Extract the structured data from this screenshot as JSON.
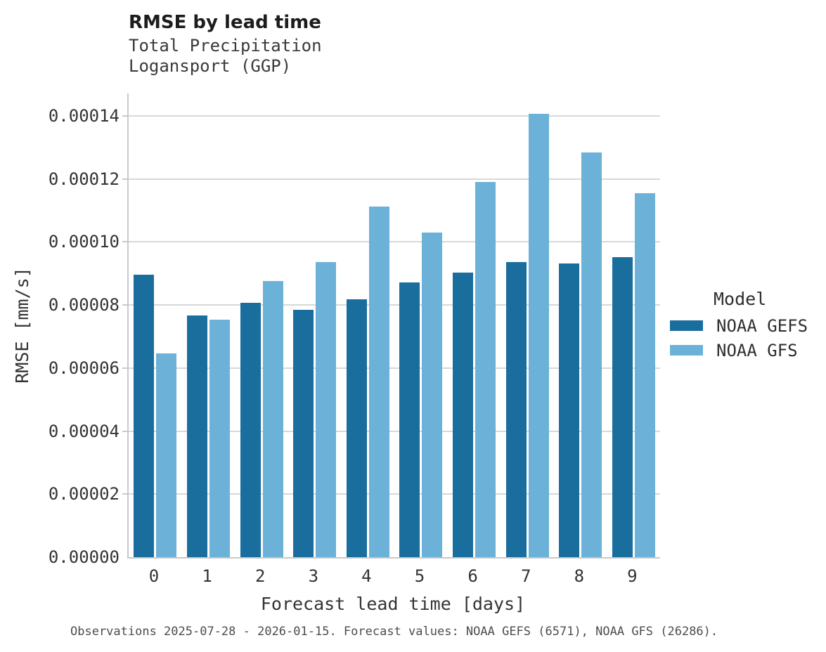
{
  "header": {
    "title": "RMSE by lead time",
    "subtitle_line1": "Total Precipitation",
    "subtitle_line2": "Logansport (GGP)"
  },
  "chart_data": {
    "type": "bar",
    "title": "RMSE by lead time",
    "subtitle": [
      "Total Precipitation",
      "Logansport (GGP)"
    ],
    "categories": [
      "0",
      "1",
      "2",
      "3",
      "4",
      "5",
      "6",
      "7",
      "8",
      "9"
    ],
    "series": [
      {
        "name": "NOAA GEFS",
        "color": "#196e9e",
        "values": [
          8.97e-05,
          7.66e-05,
          8.08e-05,
          7.84e-05,
          8.19e-05,
          8.72e-05,
          9.02e-05,
          9.37e-05,
          9.31e-05,
          9.51e-05
        ]
      },
      {
        "name": "NOAA GFS",
        "color": "#6cb1d8",
        "values": [
          6.47e-05,
          7.54e-05,
          8.76e-05,
          9.37e-05,
          0.0001112,
          0.0001031,
          0.000119,
          0.0001406,
          0.0001283,
          0.0001154
        ]
      }
    ],
    "xlabel": "Forecast lead time [days]",
    "ylabel": "RMSE [mm/s]",
    "ylim": [
      0,
      0.000147
    ],
    "yticks": [
      {
        "value": 0.0,
        "label": "0.00000"
      },
      {
        "value": 2e-05,
        "label": "0.00002"
      },
      {
        "value": 4e-05,
        "label": "0.00004"
      },
      {
        "value": 6e-05,
        "label": "0.00006"
      },
      {
        "value": 8e-05,
        "label": "0.00008"
      },
      {
        "value": 0.0001,
        "label": "0.00010"
      },
      {
        "value": 0.00012,
        "label": "0.00012"
      },
      {
        "value": 0.00014,
        "label": "0.00014"
      }
    ],
    "grid": "horizontal",
    "legend": {
      "title": "Model",
      "position": "right"
    }
  },
  "footer": {
    "caption": "Observations 2025-07-28 - 2026-01-15. Forecast values: NOAA GEFS (6571), NOAA GFS (26286)."
  },
  "colors": {
    "grid": "#d8d8d8",
    "spine": "#c9c9c9"
  }
}
